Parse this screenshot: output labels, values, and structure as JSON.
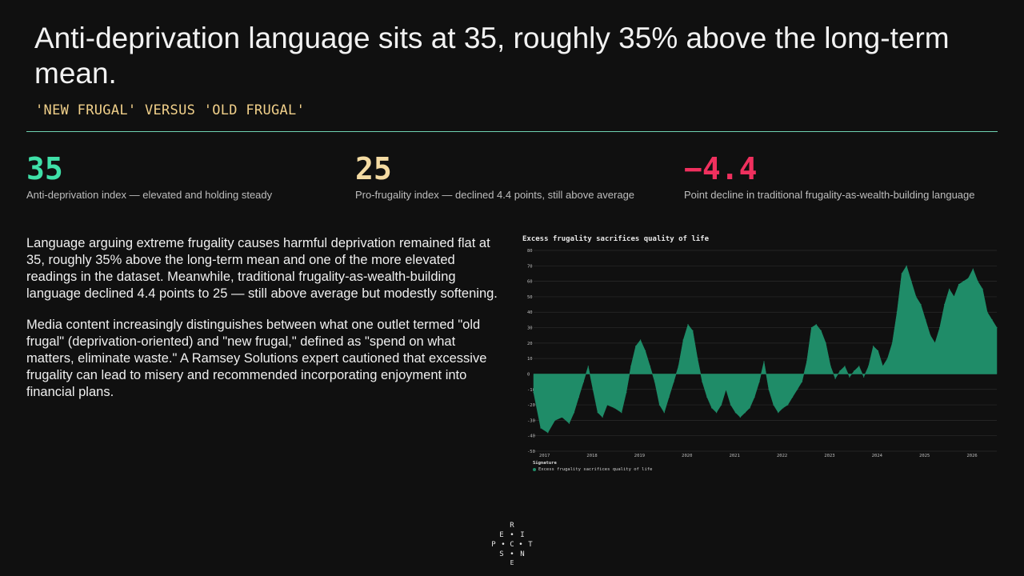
{
  "header": {
    "title": "Anti-deprivation language sits at 35, roughly 35% above the long-term mean.",
    "subtitle": "'NEW FRUGAL' VERSUS 'OLD FRUGAL'"
  },
  "kpis": [
    {
      "value": "35",
      "label": "Anti-deprivation index — elevated and holding steady",
      "color": "#3fe0a8"
    },
    {
      "value": "25",
      "label": "Pro-frugality index — declined 4.4 points, still above average",
      "color": "#f4dba3"
    },
    {
      "value": "−4.4",
      "label": "Point decline in traditional frugality-as-wealth-building language",
      "color": "#f0305e"
    }
  ],
  "body": {
    "paragraph1": "Language arguing extreme frugality causes harmful deprivation remained flat at 35, roughly 35% above the long-term mean and one of the more elevated readings in the dataset. Meanwhile, traditional frugality-as-wealth-building language declined 4.4 points to 25 — still above average but modestly softening.",
    "paragraph2": "Media content increasingly distinguishes between what one outlet termed \"old frugal\" (deprivation-oriented) and \"new frugal,\" defined as \"spend on what matters, eliminate waste.\" A Ramsey Solutions expert cautioned that excessive frugality can lead to misery and recommended incorporating enjoyment into financial plans."
  },
  "chart_data": {
    "type": "area",
    "title": "Excess frugality sacrifices quality of life",
    "xlabel": "",
    "ylabel": "",
    "ylim": [
      -50,
      80
    ],
    "yticks": [
      "80",
      "70",
      "60",
      "50",
      "40",
      "30",
      "20",
      "10",
      "0",
      "-10",
      "-20",
      "-30",
      "-40",
      "-50"
    ],
    "xticks": [
      "2017",
      "2018",
      "2019",
      "2020",
      "2021",
      "2022",
      "2023",
      "2024",
      "2025",
      "2026"
    ],
    "xlim": [
      2016.8,
      2026.55
    ],
    "grid": true,
    "legend_title": "Signature",
    "legend_position": "bottom-left",
    "series": [
      {
        "name": "Excess frugality sacrifices quality of life",
        "color": "#1f8c68",
        "x": [
          2016.8,
          2016.95,
          2017.1,
          2017.25,
          2017.4,
          2017.55,
          2017.65,
          2017.75,
          2017.85,
          2017.95,
          2018.05,
          2018.15,
          2018.25,
          2018.35,
          2018.5,
          2018.65,
          2018.75,
          2018.85,
          2018.95,
          2019.05,
          2019.15,
          2019.25,
          2019.35,
          2019.45,
          2019.55,
          2019.65,
          2019.75,
          2019.85,
          2019.95,
          2020.05,
          2020.15,
          2020.25,
          2020.35,
          2020.45,
          2020.55,
          2020.65,
          2020.75,
          2020.85,
          2020.95,
          2021.05,
          2021.15,
          2021.25,
          2021.35,
          2021.45,
          2021.55,
          2021.65,
          2021.75,
          2021.85,
          2021.95,
          2022.05,
          2022.15,
          2022.25,
          2022.35,
          2022.45,
          2022.55,
          2022.65,
          2022.75,
          2022.85,
          2022.95,
          2023.05,
          2023.15,
          2023.25,
          2023.35,
          2023.45,
          2023.55,
          2023.65,
          2023.75,
          2023.85,
          2023.95,
          2024.05,
          2024.15,
          2024.25,
          2024.35,
          2024.45,
          2024.55,
          2024.65,
          2024.75,
          2024.85,
          2024.95,
          2025.05,
          2025.15,
          2025.25,
          2025.35,
          2025.45,
          2025.55,
          2025.65,
          2025.75,
          2025.85,
          2025.95,
          2026.05,
          2026.15,
          2026.25,
          2026.35,
          2026.45,
          2026.55
        ],
        "values": [
          -12,
          -35,
          -38,
          -30,
          -28,
          -32,
          -25,
          -15,
          -5,
          5,
          -10,
          -25,
          -28,
          -20,
          -22,
          -25,
          -12,
          5,
          18,
          22,
          15,
          5,
          -5,
          -20,
          -25,
          -15,
          -5,
          5,
          22,
          32,
          28,
          10,
          -5,
          -15,
          -22,
          -25,
          -20,
          -10,
          -20,
          -25,
          -28,
          -25,
          -22,
          -15,
          -5,
          8,
          -10,
          -20,
          -25,
          -22,
          -20,
          -15,
          -10,
          -5,
          8,
          30,
          32,
          28,
          20,
          5,
          -3,
          2,
          5,
          -2,
          2,
          5,
          -2,
          5,
          18,
          15,
          5,
          10,
          20,
          40,
          65,
          70,
          60,
          50,
          45,
          35,
          25,
          20,
          30,
          45,
          55,
          50,
          58,
          60,
          62,
          68,
          60,
          55,
          40,
          35,
          30
        ]
      }
    ]
  },
  "logo": {
    "letters": [
      "R",
      "E",
      "I",
      "P",
      "C",
      "T",
      "S",
      "N",
      "E"
    ]
  }
}
